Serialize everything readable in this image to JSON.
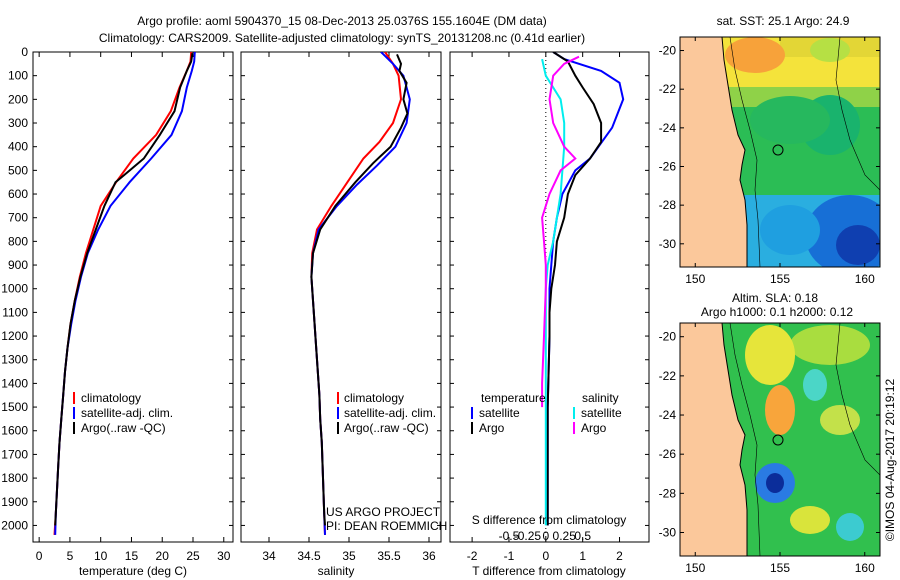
{
  "title_line1": "Argo profile: aoml 5904370_15 08-Dec-2013 25.0376S 155.1604E (DM data)",
  "title_line2": "Climatology: CARS2009. Satellite-adjusted climatology: synTS_20131208.nc (0.41d earlier)",
  "side_label": "©IMOS 04-Aug-2017 20:19:12",
  "colors": {
    "climatology": "#ff0000",
    "satellite": "#0000ff",
    "argo": "#000000",
    "argo_s": "#ff00ff",
    "sat_s": "#00eeee",
    "land": "#fbc89b"
  },
  "depth_ticks": [
    "0",
    "100",
    "200",
    "300",
    "400",
    "500",
    "600",
    "700",
    "800",
    "900",
    "1000",
    "1100",
    "1200",
    "1300",
    "1400",
    "1500",
    "1600",
    "1700",
    "1800",
    "1900",
    "2000"
  ],
  "legend": {
    "climatology": "climatology",
    "satellite": "satellite-adj. clim.",
    "argo": "Argo(..raw -QC)"
  },
  "diff_legend": {
    "temperature": "temperature",
    "salinity": "salinity",
    "satellite": "satellite",
    "argo": "Argo"
  },
  "project": {
    "line1": "US ARGO PROJECT",
    "line2": "PI: DEAN ROEMMICH"
  },
  "sst_map": {
    "title": "sat. SST: 25.1  Argo: 24.9",
    "lat_ticks": [
      "-20",
      "-22",
      "-24",
      "-26",
      "-28",
      "-30"
    ],
    "lon_ticks": [
      "150",
      "155",
      "160"
    ]
  },
  "sla_map": {
    "title1": "Altim. SLA: 0.18",
    "title2": "Argo h1000: 0.1  h2000: 0.12",
    "lat_ticks": [
      "-20",
      "-22",
      "-24",
      "-26",
      "-28",
      "-30"
    ],
    "lon_ticks": [
      "150",
      "155",
      "160"
    ]
  },
  "chart_data": [
    {
      "type": "line",
      "id": "temperature",
      "xlabel": "temperature (deg C)",
      "ylabel": "depth",
      "xlim": [
        -1,
        31.5
      ],
      "ylim": [
        2070,
        0
      ],
      "xticks": [
        0,
        5,
        10,
        15,
        20,
        25,
        30
      ],
      "series": [
        {
          "name": "climatology",
          "color": "red",
          "points": [
            [
              24.7,
              0
            ],
            [
              24.6,
              40
            ],
            [
              24.0,
              80
            ],
            [
              22.8,
              150
            ],
            [
              21.4,
              250
            ],
            [
              19.0,
              350
            ],
            [
              15.3,
              450
            ],
            [
              12.5,
              550
            ],
            [
              10.0,
              650
            ],
            [
              8.8,
              750
            ],
            [
              7.6,
              850
            ],
            [
              6.6,
              950
            ],
            [
              5.8,
              1050
            ],
            [
              5.1,
              1150
            ],
            [
              4.6,
              1250
            ],
            [
              4.2,
              1350
            ],
            [
              3.9,
              1450
            ],
            [
              3.6,
              1550
            ],
            [
              3.3,
              1650
            ],
            [
              3.1,
              1750
            ],
            [
              2.9,
              1850
            ],
            [
              2.7,
              1950
            ],
            [
              2.5,
              2040
            ]
          ]
        },
        {
          "name": "satellite-adj. clim.",
          "color": "blue",
          "points": [
            [
              25.3,
              0
            ],
            [
              25.2,
              40
            ],
            [
              24.8,
              80
            ],
            [
              24.0,
              150
            ],
            [
              23.2,
              250
            ],
            [
              21.5,
              350
            ],
            [
              18.2,
              450
            ],
            [
              14.7,
              550
            ],
            [
              11.6,
              650
            ],
            [
              9.6,
              750
            ],
            [
              7.9,
              850
            ],
            [
              6.8,
              950
            ],
            [
              5.9,
              1050
            ],
            [
              5.2,
              1150
            ],
            [
              4.6,
              1250
            ],
            [
              4.2,
              1350
            ],
            [
              3.9,
              1450
            ],
            [
              3.6,
              1550
            ],
            [
              3.3,
              1650
            ],
            [
              3.1,
              1750
            ],
            [
              2.9,
              1850
            ],
            [
              2.7,
              1950
            ],
            [
              2.6,
              2040
            ]
          ]
        },
        {
          "name": "Argo(..raw -QC)",
          "color": "black",
          "points": [
            [
              24.9,
              5
            ],
            [
              24.7,
              40
            ],
            [
              24.0,
              80
            ],
            [
              22.9,
              150
            ],
            [
              22.0,
              250
            ],
            [
              19.6,
              350
            ],
            [
              17.0,
              450
            ],
            [
              13.8,
              520
            ],
            [
              12.4,
              550
            ],
            [
              10.6,
              650
            ],
            [
              9.2,
              750
            ],
            [
              7.8,
              850
            ],
            [
              6.7,
              950
            ],
            [
              5.8,
              1050
            ],
            [
              5.1,
              1150
            ],
            [
              4.6,
              1250
            ],
            [
              4.2,
              1350
            ],
            [
              3.9,
              1450
            ],
            [
              3.6,
              1550
            ],
            [
              3.3,
              1650
            ],
            [
              3.1,
              1750
            ],
            [
              2.9,
              1850
            ],
            [
              2.7,
              1950
            ],
            [
              2.6,
              2000
            ]
          ]
        }
      ]
    },
    {
      "type": "line",
      "id": "salinity",
      "xlabel": "salinity",
      "ylabel": "depth",
      "xlim": [
        33.65,
        36.15
      ],
      "ylim": [
        2070,
        0
      ],
      "xticks": [
        34,
        34.5,
        35,
        35.5,
        36
      ],
      "series": [
        {
          "name": "climatology",
          "color": "red",
          "points": [
            [
              35.45,
              0
            ],
            [
              35.55,
              50
            ],
            [
              35.62,
              100
            ],
            [
              35.65,
              200
            ],
            [
              35.55,
              300
            ],
            [
              35.38,
              380
            ],
            [
              35.18,
              450
            ],
            [
              34.98,
              550
            ],
            [
              34.78,
              650
            ],
            [
              34.6,
              750
            ],
            [
              34.54,
              850
            ],
            [
              34.53,
              950
            ],
            [
              34.55,
              1050
            ],
            [
              34.57,
              1150
            ],
            [
              34.59,
              1250
            ],
            [
              34.61,
              1350
            ],
            [
              34.63,
              1450
            ],
            [
              34.64,
              1550
            ],
            [
              34.66,
              1650
            ],
            [
              34.67,
              1750
            ],
            [
              34.68,
              1850
            ],
            [
              34.69,
              1950
            ],
            [
              34.7,
              2040
            ]
          ]
        },
        {
          "name": "satellite-adj. clim.",
          "color": "blue",
          "points": [
            [
              35.4,
              0
            ],
            [
              35.55,
              50
            ],
            [
              35.68,
              100
            ],
            [
              35.76,
              200
            ],
            [
              35.72,
              300
            ],
            [
              35.58,
              400
            ],
            [
              35.35,
              480
            ],
            [
              35.1,
              560
            ],
            [
              34.85,
              650
            ],
            [
              34.62,
              750
            ],
            [
              34.55,
              850
            ],
            [
              34.53,
              950
            ],
            [
              34.55,
              1050
            ],
            [
              34.57,
              1150
            ],
            [
              34.59,
              1250
            ],
            [
              34.61,
              1350
            ],
            [
              34.63,
              1450
            ],
            [
              34.64,
              1550
            ],
            [
              34.66,
              1650
            ],
            [
              34.67,
              1750
            ],
            [
              34.68,
              1850
            ],
            [
              34.69,
              1950
            ],
            [
              34.7,
              2040
            ]
          ]
        },
        {
          "name": "Argo(..raw -QC)",
          "color": "black",
          "points": [
            [
              35.6,
              10
            ],
            [
              35.65,
              50
            ],
            [
              35.63,
              80
            ],
            [
              35.72,
              130
            ],
            [
              35.68,
              200
            ],
            [
              35.73,
              260
            ],
            [
              35.65,
              320
            ],
            [
              35.52,
              400
            ],
            [
              35.3,
              470
            ],
            [
              35.08,
              550
            ],
            [
              34.83,
              650
            ],
            [
              34.64,
              750
            ],
            [
              34.55,
              850
            ],
            [
              34.53,
              950
            ],
            [
              34.55,
              1050
            ],
            [
              34.57,
              1150
            ],
            [
              34.59,
              1250
            ],
            [
              34.61,
              1350
            ],
            [
              34.63,
              1450
            ],
            [
              34.64,
              1550
            ],
            [
              34.66,
              1650
            ],
            [
              34.67,
              1750
            ],
            [
              34.68,
              1850
            ],
            [
              34.69,
              1950
            ],
            [
              34.7,
              2000
            ]
          ]
        }
      ]
    },
    {
      "type": "line",
      "id": "difference",
      "xlabel": "T difference from climatology",
      "xlabel_top": "S difference from climatology",
      "ylabel": "depth",
      "xlim": [
        -2.6,
        2.8
      ],
      "ylim": [
        2070,
        0
      ],
      "xticks": [
        -2,
        -1,
        0,
        1,
        2
      ],
      "xticks_top": [
        {
          "value": -1,
          "label": "-0.5"
        },
        {
          "value": -0.5,
          "label": "-0.25"
        },
        {
          "value": 0,
          "label": "0"
        },
        {
          "value": 0.5,
          "label": "0.25"
        },
        {
          "value": 1,
          "label": "0.5"
        }
      ],
      "series": [
        {
          "name": "T satellite",
          "color": "blue",
          "points": [
            [
              0.2,
              0
            ],
            [
              0.5,
              30
            ],
            [
              1.5,
              80
            ],
            [
              2.0,
              130
            ],
            [
              2.1,
              200
            ],
            [
              1.8,
              320
            ],
            [
              1.2,
              450
            ],
            [
              0.8,
              500
            ],
            [
              0.45,
              600
            ],
            [
              0.3,
              700
            ],
            [
              0.2,
              800
            ],
            [
              0.15,
              900
            ],
            [
              0.1,
              1000
            ],
            [
              0.1,
              1200
            ],
            [
              0.05,
              1500
            ],
            [
              0.05,
              2000
            ]
          ]
        },
        {
          "name": "T Argo",
          "color": "black",
          "points": [
            [
              0.2,
              0
            ],
            [
              0.6,
              40
            ],
            [
              0.8,
              100
            ],
            [
              1.0,
              150
            ],
            [
              1.3,
              220
            ],
            [
              1.5,
              300
            ],
            [
              1.5,
              380
            ],
            [
              1.2,
              450
            ],
            [
              0.8,
              520
            ],
            [
              0.6,
              600
            ],
            [
              0.5,
              700
            ],
            [
              0.3,
              800
            ],
            [
              0.25,
              900
            ],
            [
              0.15,
              1000
            ],
            [
              0.1,
              1100
            ],
            [
              0.1,
              1200
            ],
            [
              0.05,
              1500
            ],
            [
              0.05,
              2000
            ]
          ]
        },
        {
          "name": "S satellite",
          "color": "cyan",
          "points": [
            [
              -0.1,
              30
            ],
            [
              0,
              100
            ],
            [
              0.4,
              200
            ],
            [
              0.5,
              300
            ],
            [
              0.5,
              400
            ],
            [
              0.45,
              500
            ],
            [
              0.4,
              600
            ],
            [
              0.3,
              700
            ],
            [
              0.2,
              800
            ],
            [
              0.05,
              900
            ],
            [
              0,
              1000
            ],
            [
              0,
              1200
            ],
            [
              0,
              1500
            ],
            [
              0,
              2000
            ]
          ]
        },
        {
          "name": "S Argo",
          "color": "magenta",
          "points": [
            [
              0.9,
              20
            ],
            [
              0.5,
              50
            ],
            [
              0.2,
              100
            ],
            [
              0.1,
              200
            ],
            [
              0.2,
              300
            ],
            [
              0.5,
              400
            ],
            [
              0.8,
              450
            ],
            [
              0.4,
              500
            ],
            [
              0.1,
              600
            ],
            [
              -0.1,
              700
            ],
            [
              -0.05,
              800
            ],
            [
              0,
              900
            ],
            [
              0,
              1000
            ],
            [
              -0.05,
              1200
            ],
            [
              -0.1,
              1400
            ],
            [
              -0.1,
              1500
            ]
          ]
        }
      ]
    }
  ]
}
